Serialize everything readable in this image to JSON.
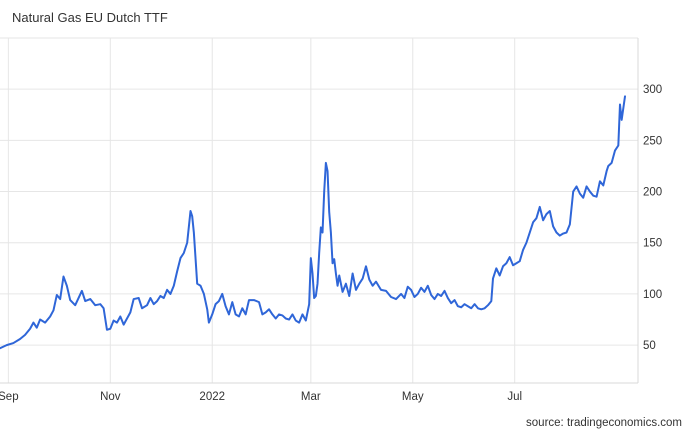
{
  "chart_data": {
    "type": "line",
    "title": "Natural Gas EU Dutch TTF",
    "xlabel": "",
    "ylabel": "",
    "ylim": [
      13,
      350
    ],
    "xlim": [
      0,
      363
    ],
    "grid": true,
    "y_ticks": [
      50,
      100,
      150,
      200,
      250,
      300
    ],
    "x_ticks": [
      {
        "label": "Sep",
        "t": 5
      },
      {
        "label": "Nov",
        "t": 66
      },
      {
        "label": "2022",
        "t": 127
      },
      {
        "label": "Mar",
        "t": 186
      },
      {
        "label": "May",
        "t": 247
      },
      {
        "label": "Jul",
        "t": 308
      }
    ],
    "series": [
      {
        "color": "#2f66d8",
        "points": [
          [
            0,
            47
          ],
          [
            4,
            50
          ],
          [
            8,
            52
          ],
          [
            12,
            56
          ],
          [
            15,
            60
          ],
          [
            18,
            66
          ],
          [
            20,
            72
          ],
          [
            22,
            67
          ],
          [
            24,
            75
          ],
          [
            27,
            72
          ],
          [
            30,
            78
          ],
          [
            32,
            84
          ],
          [
            34,
            99
          ],
          [
            36,
            95
          ],
          [
            38,
            117
          ],
          [
            40,
            108
          ],
          [
            42,
            94
          ],
          [
            45,
            89
          ],
          [
            47,
            96
          ],
          [
            49,
            103
          ],
          [
            51,
            93
          ],
          [
            54,
            95
          ],
          [
            57,
            89
          ],
          [
            60,
            90
          ],
          [
            62,
            86
          ],
          [
            64,
            65
          ],
          [
            66,
            66
          ],
          [
            68,
            74
          ],
          [
            70,
            72
          ],
          [
            72,
            78
          ],
          [
            74,
            70
          ],
          [
            76,
            76
          ],
          [
            78,
            82
          ],
          [
            80,
            95
          ],
          [
            83,
            96
          ],
          [
            85,
            86
          ],
          [
            88,
            89
          ],
          [
            90,
            96
          ],
          [
            92,
            90
          ],
          [
            94,
            93
          ],
          [
            96,
            98
          ],
          [
            98,
            96
          ],
          [
            100,
            104
          ],
          [
            102,
            100
          ],
          [
            104,
            108
          ],
          [
            106,
            122
          ],
          [
            108,
            135
          ],
          [
            110,
            140
          ],
          [
            112,
            150
          ],
          [
            114,
            181
          ],
          [
            115,
            176
          ],
          [
            116,
            160
          ],
          [
            118,
            110
          ],
          [
            120,
            108
          ],
          [
            122,
            100
          ],
          [
            124,
            85
          ],
          [
            125,
            72
          ],
          [
            127,
            80
          ],
          [
            129,
            90
          ],
          [
            131,
            93
          ],
          [
            133,
            100
          ],
          [
            135,
            88
          ],
          [
            137,
            80
          ],
          [
            139,
            92
          ],
          [
            141,
            80
          ],
          [
            143,
            78
          ],
          [
            145,
            86
          ],
          [
            147,
            80
          ],
          [
            149,
            94
          ],
          [
            152,
            94
          ],
          [
            155,
            92
          ],
          [
            157,
            80
          ],
          [
            159,
            82
          ],
          [
            161,
            85
          ],
          [
            163,
            80
          ],
          [
            165,
            76
          ],
          [
            167,
            80
          ],
          [
            169,
            79
          ],
          [
            171,
            76
          ],
          [
            173,
            75
          ],
          [
            175,
            80
          ],
          [
            177,
            74
          ],
          [
            179,
            72
          ],
          [
            181,
            80
          ],
          [
            183,
            74
          ],
          [
            185,
            90
          ],
          [
            186,
            135
          ],
          [
            187,
            120
          ],
          [
            188,
            96
          ],
          [
            189,
            98
          ],
          [
            190,
            110
          ],
          [
            191,
            140
          ],
          [
            192,
            165
          ],
          [
            193,
            160
          ],
          [
            194,
            200
          ],
          [
            195,
            228
          ],
          [
            196,
            220
          ],
          [
            197,
            180
          ],
          [
            198,
            160
          ],
          [
            199,
            130
          ],
          [
            200,
            134
          ],
          [
            201,
            120
          ],
          [
            202,
            108
          ],
          [
            203,
            118
          ],
          [
            205,
            102
          ],
          [
            207,
            110
          ],
          [
            209,
            98
          ],
          [
            211,
            120
          ],
          [
            213,
            104
          ],
          [
            215,
            110
          ],
          [
            217,
            115
          ],
          [
            219,
            127
          ],
          [
            221,
            114
          ],
          [
            223,
            108
          ],
          [
            225,
            112
          ],
          [
            228,
            104
          ],
          [
            231,
            103
          ],
          [
            234,
            97
          ],
          [
            237,
            95
          ],
          [
            240,
            100
          ],
          [
            242,
            96
          ],
          [
            244,
            107
          ],
          [
            246,
            104
          ],
          [
            248,
            97
          ],
          [
            250,
            100
          ],
          [
            252,
            106
          ],
          [
            254,
            102
          ],
          [
            256,
            108
          ],
          [
            258,
            99
          ],
          [
            260,
            95
          ],
          [
            262,
            100
          ],
          [
            264,
            98
          ],
          [
            266,
            103
          ],
          [
            268,
            96
          ],
          [
            270,
            91
          ],
          [
            272,
            94
          ],
          [
            274,
            88
          ],
          [
            276,
            87
          ],
          [
            278,
            90
          ],
          [
            280,
            88
          ],
          [
            282,
            86
          ],
          [
            284,
            90
          ],
          [
            286,
            86
          ],
          [
            288,
            85
          ],
          [
            290,
            86
          ],
          [
            292,
            89
          ],
          [
            294,
            93
          ],
          [
            295,
            115
          ],
          [
            297,
            125
          ],
          [
            299,
            118
          ],
          [
            301,
            127
          ],
          [
            303,
            130
          ],
          [
            305,
            136
          ],
          [
            307,
            128
          ],
          [
            309,
            130
          ],
          [
            311,
            132
          ],
          [
            313,
            143
          ],
          [
            315,
            150
          ],
          [
            317,
            160
          ],
          [
            319,
            170
          ],
          [
            321,
            174
          ],
          [
            323,
            185
          ],
          [
            325,
            172
          ],
          [
            327,
            178
          ],
          [
            329,
            181
          ],
          [
            331,
            166
          ],
          [
            333,
            160
          ],
          [
            335,
            157
          ],
          [
            337,
            159
          ],
          [
            339,
            160
          ],
          [
            341,
            168
          ],
          [
            343,
            200
          ],
          [
            345,
            205
          ],
          [
            347,
            198
          ],
          [
            349,
            194
          ],
          [
            351,
            205
          ],
          [
            353,
            200
          ],
          [
            355,
            196
          ],
          [
            357,
            195
          ],
          [
            359,
            210
          ],
          [
            361,
            206
          ],
          [
            363,
            220
          ],
          [
            364,
            225
          ],
          [
            366,
            228
          ],
          [
            368,
            240
          ],
          [
            370,
            245
          ],
          [
            371,
            285
          ],
          [
            372,
            270
          ],
          [
            374,
            293
          ]
        ]
      }
    ]
  },
  "source": "source: tradingeconomics.com"
}
